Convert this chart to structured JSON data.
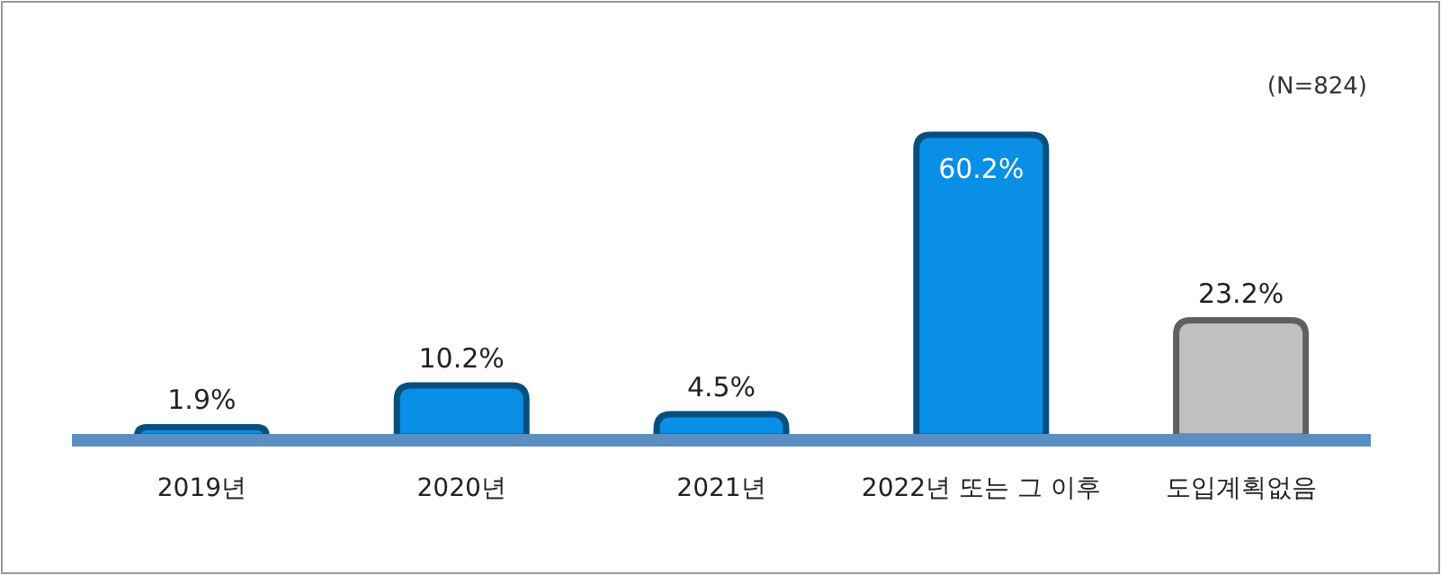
{
  "chart_data": {
    "type": "bar",
    "categories": [
      "2019년",
      "2020년",
      "2021년",
      "2022년 또는 그 이후",
      "도입계획없음"
    ],
    "values": [
      1.9,
      10.2,
      4.5,
      60.2,
      23.2
    ],
    "colors": [
      "#0a8fe6",
      "#0a8fe6",
      "#0a8fe6",
      "#0a8fe6",
      "#c0c0c0"
    ],
    "value_labels": [
      "1.9%",
      "10.2%",
      "4.5%",
      "60.2%",
      "23.2%"
    ],
    "annotations": [
      "(N=824)"
    ]
  }
}
